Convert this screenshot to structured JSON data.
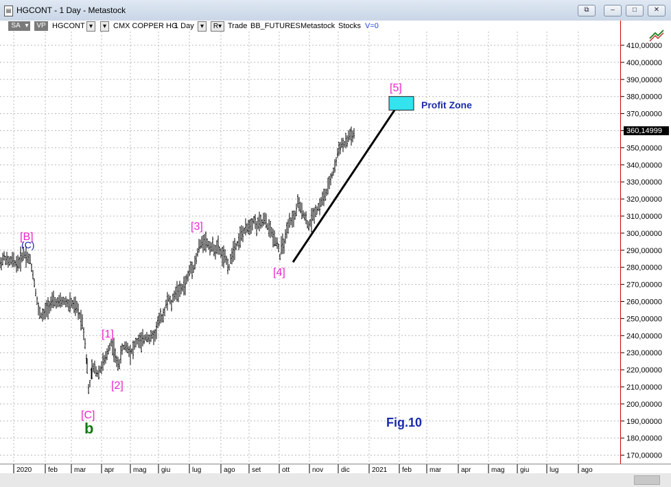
{
  "window": {
    "title": "HGCONT - 1 Day - Metastock",
    "buttons": [
      "⧉",
      "–",
      "□",
      "✕"
    ]
  },
  "toolbar": {
    "sa_label": "SA",
    "vp_label": "VP",
    "symbol": "HGCONT",
    "security_name": "CMX COPPER HG",
    "period": "1 Day",
    "r_label": "R",
    "trade_label": "Trade",
    "source": "BB_FUTURES",
    "app": "Metastock",
    "category": "Stocks",
    "volume": "V=0"
  },
  "price_scale": {
    "labels": [
      "410,00000",
      "400,00000",
      "390,00000",
      "380,00000",
      "370,00000",
      "360,00000",
      "350,00000",
      "340,00000",
      "330,00000",
      "320,00000",
      "310,00000",
      "300,00000",
      "290,00000",
      "280,00000",
      "270,00000",
      "260,00000",
      "250,00000",
      "240,00000",
      "230,00000",
      "220,00000",
      "210,00000",
      "200,00000",
      "190,00000",
      "180,00000",
      "170,00000"
    ],
    "last_price_label": "360,14999"
  },
  "time_axis": {
    "labels": [
      "2020",
      "feb",
      "mar",
      "apr",
      "mag",
      "giu",
      "lug",
      "ago",
      "set",
      "ott",
      "nov",
      "dic",
      "2021",
      "feb",
      "mar",
      "apr",
      "mag",
      "giu",
      "lug",
      "ago"
    ]
  },
  "annotations": {
    "wave_B": "[B]",
    "wave_C_small": "(C)",
    "wave_C": "[C]",
    "wave_b": "b",
    "wave_1": "[1]",
    "wave_2": "[2]",
    "wave_3": "[3]",
    "wave_4": "[4]",
    "wave_5": "[5]",
    "profit_zone": "Profit Zone",
    "figure": "Fig.10"
  },
  "colors": {
    "wave_labels": "#ee22cc",
    "wave_C_small": "#1a1aaa",
    "wave_b": "#127a12",
    "profit_zone_fill": "#33e3ee",
    "profit_zone_text": "#1a2aaa",
    "figure_text": "#1a2aaa",
    "scale_border": "#cc0000"
  },
  "chart_data": {
    "type": "line",
    "title": "",
    "ylim": [
      165,
      420
    ],
    "x": [
      "2020-01",
      "2020-02",
      "2020-03",
      "2020-04",
      "2020-05",
      "2020-06",
      "2020-07",
      "2020-08",
      "2020-09",
      "2020-10",
      "2020-11",
      "2020-12"
    ],
    "series": [
      {
        "values": [
          [
            0,
            282
          ],
          [
            6,
            286
          ],
          [
            12,
            283
          ],
          [
            18,
            284
          ],
          [
            24,
            282
          ],
          [
            28,
            283
          ],
          [
            34,
            288
          ],
          [
            38,
            287
          ],
          [
            44,
            284
          ],
          [
            48,
            276
          ],
          [
            52,
            266
          ],
          [
            56,
            255
          ],
          [
            60,
            252
          ],
          [
            64,
            252
          ],
          [
            68,
            256
          ],
          [
            72,
            258
          ],
          [
            78,
            260
          ],
          [
            84,
            259
          ],
          [
            90,
            260
          ],
          [
            96,
            260
          ],
          [
            100,
            258
          ],
          [
            104,
            259
          ],
          [
            108,
            257
          ],
          [
            112,
            256
          ],
          [
            116,
            252
          ],
          [
            120,
            248
          ],
          [
            124,
            236
          ],
          [
            127,
            222
          ],
          [
            129,
            208
          ],
          [
            131,
            212
          ],
          [
            134,
            220
          ],
          [
            138,
            221
          ],
          [
            142,
            218
          ],
          [
            146,
            220
          ],
          [
            150,
            224
          ],
          [
            154,
            226
          ],
          [
            158,
            232
          ],
          [
            162,
            236
          ],
          [
            166,
            232
          ],
          [
            170,
            224
          ],
          [
            174,
            224
          ],
          [
            178,
            232
          ],
          [
            182,
            234
          ],
          [
            186,
            233
          ],
          [
            190,
            230
          ],
          [
            194,
            232
          ],
          [
            198,
            236
          ],
          [
            202,
            237
          ],
          [
            206,
            236
          ],
          [
            210,
            238
          ],
          [
            214,
            240
          ],
          [
            218,
            238
          ],
          [
            222,
            240
          ],
          [
            226,
            240
          ],
          [
            230,
            248
          ],
          [
            234,
            250
          ],
          [
            238,
            252
          ],
          [
            242,
            258
          ],
          [
            246,
            262
          ],
          [
            250,
            258
          ],
          [
            254,
            264
          ],
          [
            258,
            266
          ],
          [
            262,
            266
          ],
          [
            266,
            268
          ],
          [
            270,
            270
          ],
          [
            274,
            275
          ],
          [
            278,
            280
          ],
          [
            282,
            280
          ],
          [
            286,
            285
          ],
          [
            290,
            292
          ],
          [
            294,
            294
          ],
          [
            298,
            296
          ],
          [
            302,
            294
          ],
          [
            306,
            292
          ],
          [
            310,
            292
          ],
          [
            314,
            290
          ],
          [
            318,
            292
          ],
          [
            322,
            288
          ],
          [
            326,
            286
          ],
          [
            330,
            284
          ],
          [
            334,
            280
          ],
          [
            338,
            288
          ],
          [
            342,
            292
          ],
          [
            346,
            294
          ],
          [
            350,
            298
          ],
          [
            354,
            300
          ],
          [
            358,
            302
          ],
          [
            362,
            304
          ],
          [
            366,
            305
          ],
          [
            370,
            308
          ],
          [
            374,
            304
          ],
          [
            378,
            306
          ],
          [
            382,
            306
          ],
          [
            386,
            308
          ],
          [
            390,
            304
          ],
          [
            394,
            302
          ],
          [
            398,
            298
          ],
          [
            402,
            296
          ],
          [
            406,
            292
          ],
          [
            408,
            286
          ],
          [
            410,
            292
          ],
          [
            414,
            294
          ],
          [
            418,
            300
          ],
          [
            422,
            306
          ],
          [
            426,
            308
          ],
          [
            430,
            310
          ],
          [
            434,
            318
          ],
          [
            438,
            314
          ],
          [
            442,
            312
          ],
          [
            446,
            308
          ],
          [
            450,
            304
          ],
          [
            454,
            308
          ],
          [
            458,
            312
          ],
          [
            462,
            314
          ],
          [
            466,
            316
          ],
          [
            470,
            320
          ],
          [
            474,
            322
          ],
          [
            478,
            326
          ],
          [
            482,
            332
          ],
          [
            486,
            336
          ],
          [
            490,
            342
          ],
          [
            494,
            350
          ],
          [
            498,
            352
          ],
          [
            502,
            352
          ],
          [
            506,
            354
          ],
          [
            510,
            358
          ],
          [
            514,
            356
          ],
          [
            518,
            360
          ]
        ]
      }
    ],
    "trendline": [
      [
        427,
        283
      ],
      [
        585,
        378
      ]
    ],
    "profit_zone": {
      "ymin": 372,
      "ymax": 380
    }
  }
}
